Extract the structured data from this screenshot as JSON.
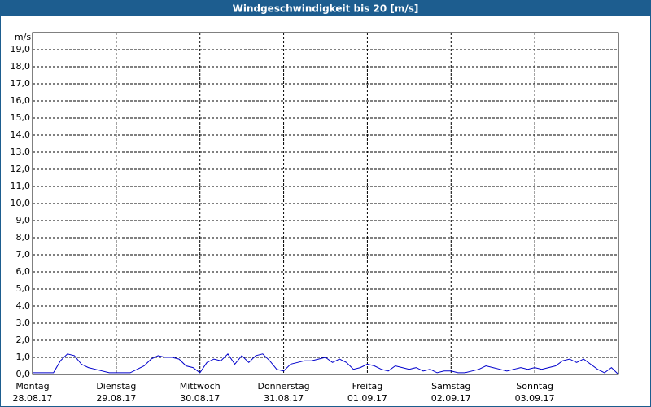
{
  "chart_data": {
    "type": "line",
    "title": "Windgeschwindigkeit bis 20 [m/s]",
    "y_label": "m/s",
    "x": [
      0,
      2,
      4,
      6,
      8,
      10,
      12,
      14,
      16,
      18,
      20,
      22,
      24,
      26,
      28,
      30,
      32,
      34,
      36,
      38,
      40,
      42,
      44,
      46,
      48,
      50,
      52,
      54,
      56,
      58,
      60,
      62,
      64,
      66,
      68,
      70,
      72,
      74,
      76,
      78,
      80,
      82,
      84,
      86,
      88,
      90,
      92,
      94,
      96,
      98,
      100,
      102,
      104,
      106,
      108,
      110,
      112,
      114,
      116,
      118,
      120,
      122,
      124,
      126,
      128,
      130,
      132,
      134,
      136,
      138,
      140,
      142,
      144,
      146,
      148,
      150,
      152,
      154,
      156,
      158,
      160,
      162,
      164,
      166,
      168
    ],
    "values": [
      0.1,
      0.1,
      0.1,
      0.1,
      0.8,
      1.2,
      1.1,
      0.6,
      0.4,
      0.3,
      0.2,
      0.1,
      0.1,
      0.1,
      0.1,
      0.3,
      0.5,
      0.9,
      1.1,
      1.0,
      1.0,
      0.9,
      0.5,
      0.4,
      0.1,
      0.7,
      0.9,
      0.8,
      1.2,
      0.6,
      1.1,
      0.7,
      1.1,
      1.2,
      0.8,
      0.3,
      0.2,
      0.6,
      0.7,
      0.8,
      0.8,
      0.9,
      1.0,
      0.7,
      0.9,
      0.7,
      0.3,
      0.4,
      0.6,
      0.5,
      0.3,
      0.2,
      0.5,
      0.4,
      0.3,
      0.4,
      0.2,
      0.3,
      0.1,
      0.2,
      0.2,
      0.1,
      0.1,
      0.2,
      0.3,
      0.5,
      0.4,
      0.3,
      0.2,
      0.3,
      0.4,
      0.3,
      0.4,
      0.3,
      0.4,
      0.5,
      0.8,
      0.9,
      0.7,
      0.9,
      0.6,
      0.3,
      0.1,
      0.4,
      0.0
    ],
    "color": "#0000cc",
    "xlim": [
      0,
      168
    ],
    "xticks": [
      {
        "value": 0,
        "label": "Montag"
      },
      {
        "value": 24,
        "label": "Dienstag"
      },
      {
        "value": 48,
        "label": "Mittwoch"
      },
      {
        "value": 72,
        "label": "Donnerstag"
      },
      {
        "value": 96,
        "label": "Freitag"
      },
      {
        "value": 120,
        "label": "Samstag"
      },
      {
        "value": 144,
        "label": "Sonntag"
      }
    ],
    "xtick_dates": [
      "28.08.17",
      "29.08.17",
      "30.08.17",
      "31.08.17",
      "01.09.17",
      "02.09.17",
      "03.09.17"
    ],
    "ylim": [
      0,
      20
    ],
    "yticks": [
      {
        "value": 0,
        "label": "0,0"
      },
      {
        "value": 1,
        "label": "1,0"
      },
      {
        "value": 2,
        "label": "2,0"
      },
      {
        "value": 3,
        "label": "3,0"
      },
      {
        "value": 4,
        "label": "4,0"
      },
      {
        "value": 5,
        "label": "5,0"
      },
      {
        "value": 6,
        "label": "6,0"
      },
      {
        "value": 7,
        "label": "7,0"
      },
      {
        "value": 8,
        "label": "8,0"
      },
      {
        "value": 9,
        "label": "9,0"
      },
      {
        "value": 10,
        "label": "10,0"
      },
      {
        "value": 11,
        "label": "11,0"
      },
      {
        "value": 12,
        "label": "12,0"
      },
      {
        "value": 13,
        "label": "13,0"
      },
      {
        "value": 14,
        "label": "14,0"
      },
      {
        "value": 15,
        "label": "15,0"
      },
      {
        "value": 16,
        "label": "16,0"
      },
      {
        "value": 17,
        "label": "17,0"
      },
      {
        "value": 18,
        "label": "18,0"
      },
      {
        "value": 19,
        "label": "19,0"
      }
    ],
    "grid": true
  }
}
